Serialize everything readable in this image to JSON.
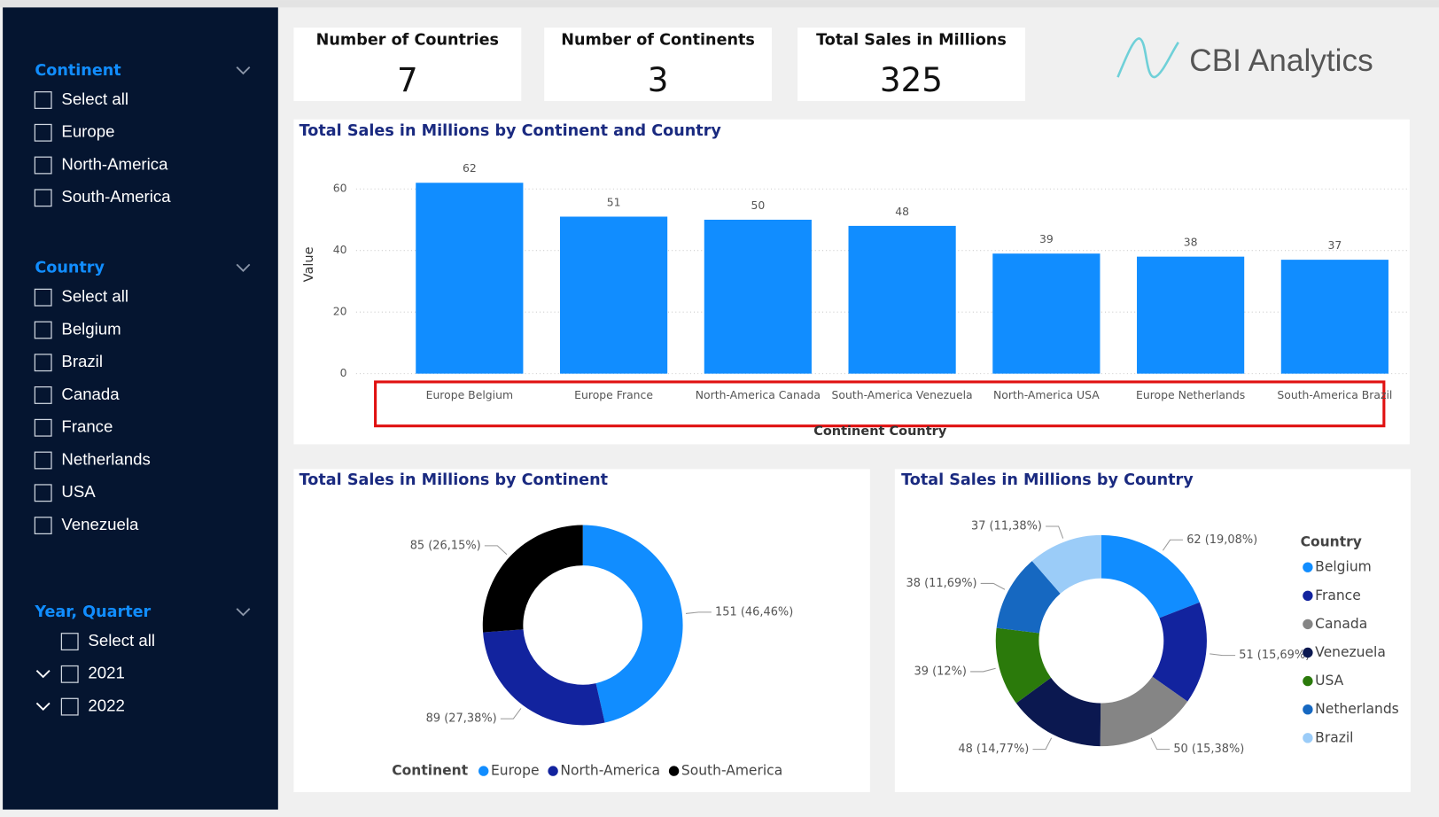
{
  "slicers": [
    {
      "title": "Continent",
      "items": [
        "Select all",
        "Europe",
        "North-America",
        "South-America"
      ]
    },
    {
      "title": "Country",
      "items": [
        "Select all",
        "Belgium",
        "Brazil",
        "Canada",
        "France",
        "Netherlands",
        "USA",
        "Venezuela"
      ]
    },
    {
      "title": "Year, Quarter",
      "hierarchy": true,
      "items": [
        "Select all",
        "2021",
        "2022"
      ]
    }
  ],
  "cards": [
    {
      "label": "Number of Countries",
      "value": 7
    },
    {
      "label": "Number of Continents",
      "value": 3
    },
    {
      "label": "Total Sales in Millions",
      "value": 325
    }
  ],
  "logo": "CBI Analytics",
  "chart_data": [
    {
      "type": "bar",
      "title": "Total Sales in Millions by Continent and Country",
      "x_label": "Continent Country",
      "y_label": "Value",
      "categories": [
        "Europe Belgium",
        "Europe France",
        "North-America Canada",
        "South-America Venezuela",
        "North-America USA",
        "Europe Netherlands",
        "South-America Brazil"
      ],
      "values": [
        62,
        51,
        50,
        48,
        39,
        38,
        37
      ],
      "color": "#118DFF",
      "ylim": [
        0,
        65
      ],
      "yticks": [
        0,
        20,
        40,
        60
      ],
      "grid": true
    },
    {
      "type": "donut",
      "title": "Total Sales in Millions by Continent",
      "legend_title": "Continent",
      "legend": "bottom",
      "categories": [
        "Europe",
        "North-America",
        "South-America"
      ],
      "values": [
        151,
        89,
        85
      ],
      "value_labels": [
        "151 (46,46%)",
        "89 (27,38%)",
        "85 (26,15%)"
      ],
      "colors": [
        "#118DFF",
        "#12239E",
        "#000000"
      ]
    },
    {
      "type": "donut",
      "title": "Total Sales in Millions by Country",
      "legend_title": "Country",
      "legend": "right",
      "categories": [
        "Belgium",
        "France",
        "Canada",
        "Venezuela",
        "USA",
        "Netherlands",
        "Brazil"
      ],
      "values": [
        62,
        51,
        50,
        48,
        39,
        38,
        37
      ],
      "value_labels": [
        "62 (19,08%)",
        "51 (15,69%)",
        "50 (15,38%)",
        "48 (14,77%)",
        "39 (12%)",
        "38 (11,69%)",
        "37 (11,38%)"
      ],
      "colors": [
        "#118DFF",
        "#12239E",
        "#858585",
        "#0B1850",
        "#2B7A0B",
        "#1668C1",
        "#9BCCF8"
      ]
    }
  ]
}
